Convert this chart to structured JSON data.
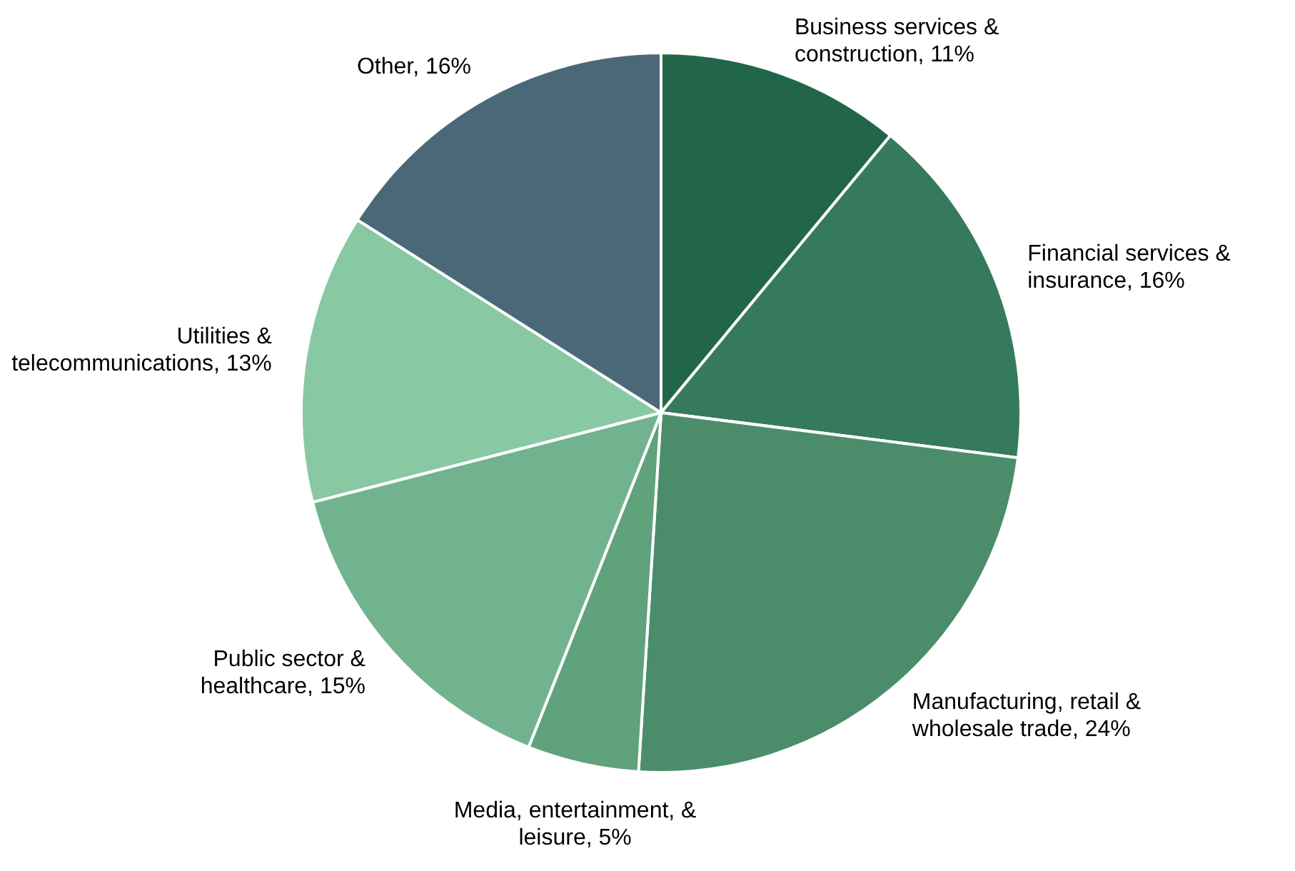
{
  "chart_data": {
    "type": "pie",
    "categories": [
      "Business services & construction",
      "Financial services & insurance",
      "Manufacturing, retail & wholesale trade",
      "Media, entertainment, & leisure",
      "Public sector & healthcare",
      "Utilities & telecommunications",
      "Other"
    ],
    "values": [
      11,
      16,
      24,
      5,
      15,
      13,
      16
    ],
    "value_labels": [
      "11%",
      "16%",
      "24%",
      "5%",
      "15%",
      "13%",
      "16%"
    ],
    "colors": [
      "#226649",
      "#367a5d",
      "#4b8d6a",
      "#5fa27c",
      "#72b38f",
      "#88c8a2",
      "#4a6878"
    ],
    "legend": false
  }
}
